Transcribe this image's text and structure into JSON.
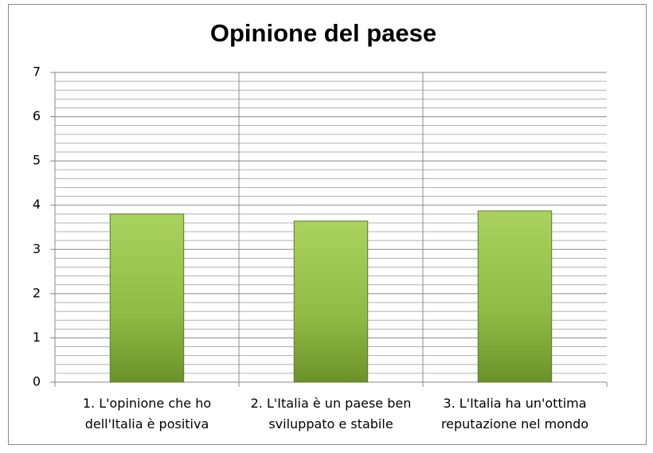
{
  "chart_data": {
    "type": "bar",
    "title": "Opinione del paese",
    "categories": [
      "1. L'opinione che ho\ndell'Italia è positiva",
      "2. L'Italia è un paese ben\nsviluppato e stabile",
      "3. L'Italia ha un'ottima\nreputazione nel mondo"
    ],
    "values": [
      3.8,
      3.64,
      3.87
    ],
    "color": "#9bc850",
    "ylim": [
      0,
      7
    ],
    "yticks": [
      0,
      1,
      2,
      3,
      4,
      5,
      6,
      7
    ],
    "grid": true
  }
}
